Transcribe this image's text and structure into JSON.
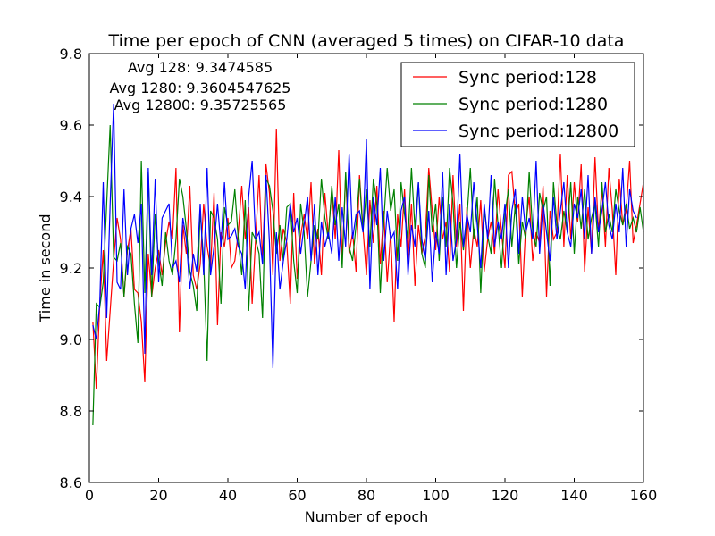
{
  "chart_data": {
    "type": "line",
    "title": "Time per epoch of CNN (averaged 5 times) on CIFAR-10 data",
    "xlabel": "Number of epoch",
    "ylabel": "Time in second",
    "xlim": [
      0,
      160
    ],
    "ylim": [
      8.6,
      9.8
    ],
    "xticks": [
      0,
      20,
      40,
      60,
      80,
      100,
      120,
      140,
      160
    ],
    "yticks": [
      8.6,
      8.8,
      9.0,
      9.2,
      9.4,
      9.6,
      9.8
    ],
    "xtick_labels": [
      "0",
      "20",
      "40",
      "60",
      "80",
      "100",
      "120",
      "140",
      "160"
    ],
    "ytick_labels": [
      "8.6",
      "8.8",
      "9.0",
      "9.2",
      "9.4",
      "9.6",
      "9.8"
    ],
    "grid": false,
    "legend_position": "top-right",
    "annotations": [
      "Avg 128: 9.3474585",
      "Avg 1280: 9.3604547625",
      "Avg 12800: 9.35725565"
    ],
    "x_start": 1,
    "series": [
      {
        "name": "Sync period:128",
        "color": "#ff0000",
        "values": [
          9.05,
          8.86,
          9.1,
          9.25,
          8.94,
          9.08,
          9.22,
          9.34,
          9.28,
          9.12,
          9.25,
          9.31,
          9.14,
          9.13,
          9.05,
          8.88,
          9.24,
          9.12,
          9.2,
          9.25,
          9.18,
          9.27,
          9.33,
          9.28,
          9.48,
          9.02,
          9.32,
          9.24,
          9.43,
          9.18,
          9.14,
          9.21,
          9.38,
          9.26,
          9.2,
          9.41,
          9.04,
          9.3,
          9.26,
          9.34,
          9.2,
          9.22,
          9.3,
          9.43,
          9.28,
          9.37,
          9.1,
          9.28,
          9.46,
          9.22,
          9.49,
          9.41,
          9.18,
          9.59,
          9.22,
          9.31,
          9.27,
          9.1,
          9.41,
          9.17,
          9.29,
          9.35,
          9.28,
          9.44,
          9.21,
          9.31,
          9.18,
          9.41,
          9.29,
          9.42,
          9.28,
          9.53,
          9.22,
          9.46,
          9.24,
          9.3,
          9.19,
          9.46,
          9.31,
          9.18,
          9.39,
          9.27,
          9.43,
          9.21,
          9.36,
          9.16,
          9.3,
          9.05,
          9.35,
          9.26,
          9.42,
          9.22,
          9.38,
          9.15,
          9.32,
          9.24,
          9.29,
          9.48,
          9.36,
          9.25,
          9.4,
          9.28,
          9.33,
          9.19,
          9.46,
          9.26,
          9.38,
          9.08,
          9.37,
          9.2,
          9.31,
          9.26,
          9.39,
          9.19,
          9.28,
          9.33,
          9.24,
          9.42,
          9.3,
          9.2,
          9.46,
          9.47,
          9.35,
          9.38,
          9.12,
          9.32,
          9.4,
          9.22,
          9.3,
          9.27,
          9.43,
          9.12,
          9.36,
          9.28,
          9.3,
          9.52,
          9.26,
          9.46,
          9.28,
          9.44,
          9.33,
          9.49,
          9.19,
          9.37,
          9.24,
          9.51,
          9.3,
          9.42,
          9.26,
          9.48,
          9.36,
          9.18,
          9.45,
          9.32,
          9.36,
          9.5,
          9.27,
          9.32,
          9.38,
          9.44
        ]
      },
      {
        "name": "Sync period:1280",
        "color": "#008000",
        "values": [
          8.76,
          9.1,
          9.09,
          9.16,
          9.38,
          9.6,
          9.23,
          9.22,
          9.27,
          9.12,
          9.26,
          9.24,
          9.1,
          8.99,
          9.5,
          9.13,
          9.47,
          9.12,
          9.35,
          9.22,
          9.15,
          9.3,
          9.22,
          9.18,
          9.28,
          9.45,
          9.4,
          9.31,
          9.19,
          9.15,
          9.08,
          9.36,
          9.22,
          8.94,
          9.36,
          9.34,
          9.28,
          9.1,
          9.37,
          9.32,
          9.33,
          9.42,
          9.28,
          9.18,
          9.39,
          9.08,
          9.3,
          9.28,
          9.24,
          9.06,
          9.45,
          9.43,
          9.36,
          9.24,
          9.32,
          9.22,
          9.37,
          9.38,
          9.22,
          9.13,
          9.38,
          9.3,
          9.12,
          9.22,
          9.32,
          9.28,
          9.45,
          9.34,
          9.28,
          9.43,
          9.32,
          9.38,
          9.2,
          9.47,
          9.26,
          9.22,
          9.32,
          9.45,
          9.3,
          9.42,
          9.26,
          9.45,
          9.38,
          9.13,
          9.33,
          9.48,
          9.36,
          9.42,
          9.22,
          9.44,
          9.35,
          9.28,
          9.48,
          9.31,
          9.44,
          9.24,
          9.2,
          9.46,
          9.3,
          9.38,
          9.22,
          9.4,
          9.26,
          9.48,
          9.38,
          9.2,
          9.33,
          9.25,
          9.34,
          9.48,
          9.28,
          9.4,
          9.13,
          9.36,
          9.29,
          9.24,
          9.45,
          9.32,
          9.2,
          9.35,
          9.42,
          9.26,
          9.38,
          9.21,
          9.33,
          9.28,
          9.47,
          9.3,
          9.26,
          9.41,
          9.36,
          9.4,
          9.15,
          9.44,
          9.32,
          9.28,
          9.36,
          9.3,
          9.44,
          9.24,
          9.4,
          9.31,
          9.42,
          9.28,
          9.34,
          9.38,
          9.26,
          9.44,
          9.3,
          9.35,
          9.3,
          9.42,
          9.36,
          9.32,
          9.38,
          9.31,
          9.34,
          9.3,
          9.37,
          9.3
        ]
      },
      {
        "name": "Sync period:12800",
        "color": "#0000ff",
        "values": [
          9.04,
          9.0,
          9.1,
          9.44,
          9.06,
          9.38,
          9.66,
          9.16,
          9.14,
          9.42,
          9.18,
          9.31,
          9.35,
          9.27,
          9.38,
          8.96,
          9.48,
          9.18,
          9.45,
          9.16,
          9.34,
          9.36,
          9.38,
          9.2,
          9.22,
          9.16,
          9.34,
          9.28,
          9.14,
          9.24,
          9.19,
          9.38,
          9.18,
          9.48,
          9.18,
          9.26,
          9.38,
          9.26,
          9.44,
          9.28,
          9.29,
          9.31,
          9.26,
          9.24,
          9.14,
          9.4,
          9.5,
          9.28,
          9.3,
          9.21,
          9.46,
          9.27,
          8.92,
          9.3,
          9.14,
          9.22,
          9.28,
          9.38,
          9.3,
          9.34,
          9.24,
          9.32,
          9.4,
          9.22,
          9.38,
          9.18,
          9.33,
          9.26,
          9.3,
          9.24,
          9.4,
          9.22,
          9.37,
          9.26,
          9.52,
          9.28,
          9.35,
          9.36,
          9.3,
          9.56,
          9.14,
          9.4,
          9.32,
          9.48,
          9.22,
          9.36,
          9.28,
          9.3,
          9.14,
          9.36,
          9.4,
          9.18,
          9.32,
          9.26,
          9.44,
          9.28,
          9.22,
          9.36,
          9.16,
          9.3,
          9.24,
          9.47,
          9.18,
          9.38,
          9.22,
          9.28,
          9.52,
          9.26,
          9.35,
          9.3,
          9.44,
          9.32,
          9.2,
          9.38,
          9.28,
          9.46,
          9.26,
          9.33,
          9.28,
          9.38,
          9.2,
          9.36,
          9.42,
          9.24,
          9.4,
          9.3,
          9.34,
          9.28,
          9.5,
          9.24,
          9.38,
          9.3,
          9.22,
          9.4,
          9.28,
          9.36,
          9.44,
          9.3,
          9.26,
          9.38,
          9.34,
          9.42,
          9.28,
          9.46,
          9.24,
          9.4,
          9.3,
          9.36,
          9.44,
          9.32,
          9.28,
          9.38,
          9.3,
          9.48,
          9.26,
          9.42,
          9.36,
          9.34
        ]
      }
    ]
  }
}
